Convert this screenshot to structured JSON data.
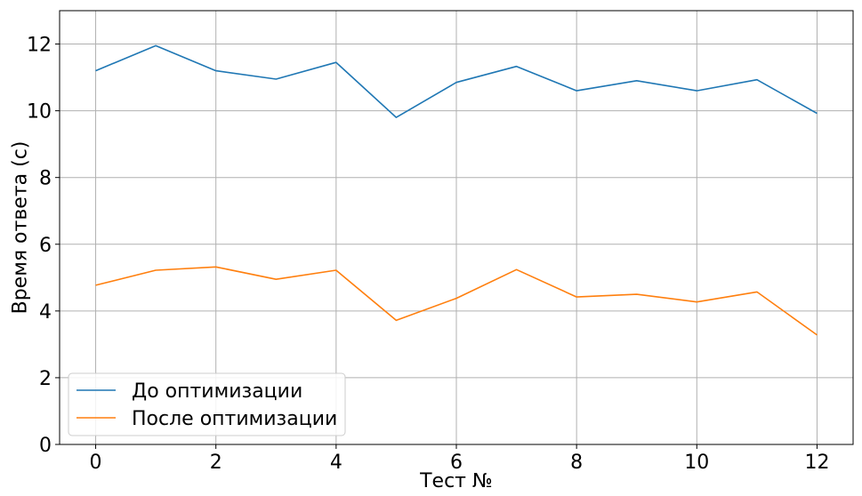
{
  "chart_data": {
    "type": "line",
    "title": "",
    "xlabel": "Тест №",
    "ylabel": "Время ответа (с)",
    "x": [
      0,
      1,
      2,
      3,
      4,
      5,
      6,
      7,
      8,
      9,
      10,
      11,
      12
    ],
    "xlim": [
      -0.6,
      12.6
    ],
    "ylim": [
      0,
      13
    ],
    "xticks": [
      0,
      2,
      4,
      6,
      8,
      10,
      12
    ],
    "yticks": [
      0,
      2,
      4,
      6,
      8,
      10,
      12
    ],
    "grid": true,
    "legend_position": "lower-left",
    "series": [
      {
        "name": "До оптимизации",
        "color": "#1f77b4",
        "values": [
          11.2,
          11.95,
          11.2,
          10.95,
          11.45,
          9.8,
          10.85,
          11.33,
          10.6,
          10.9,
          10.6,
          10.93,
          9.92
        ]
      },
      {
        "name": "После оптимизации",
        "color": "#ff7f0e",
        "values": [
          4.77,
          5.22,
          5.32,
          4.95,
          5.22,
          3.72,
          4.38,
          5.24,
          4.42,
          4.5,
          4.27,
          4.57,
          3.28
        ]
      }
    ]
  }
}
